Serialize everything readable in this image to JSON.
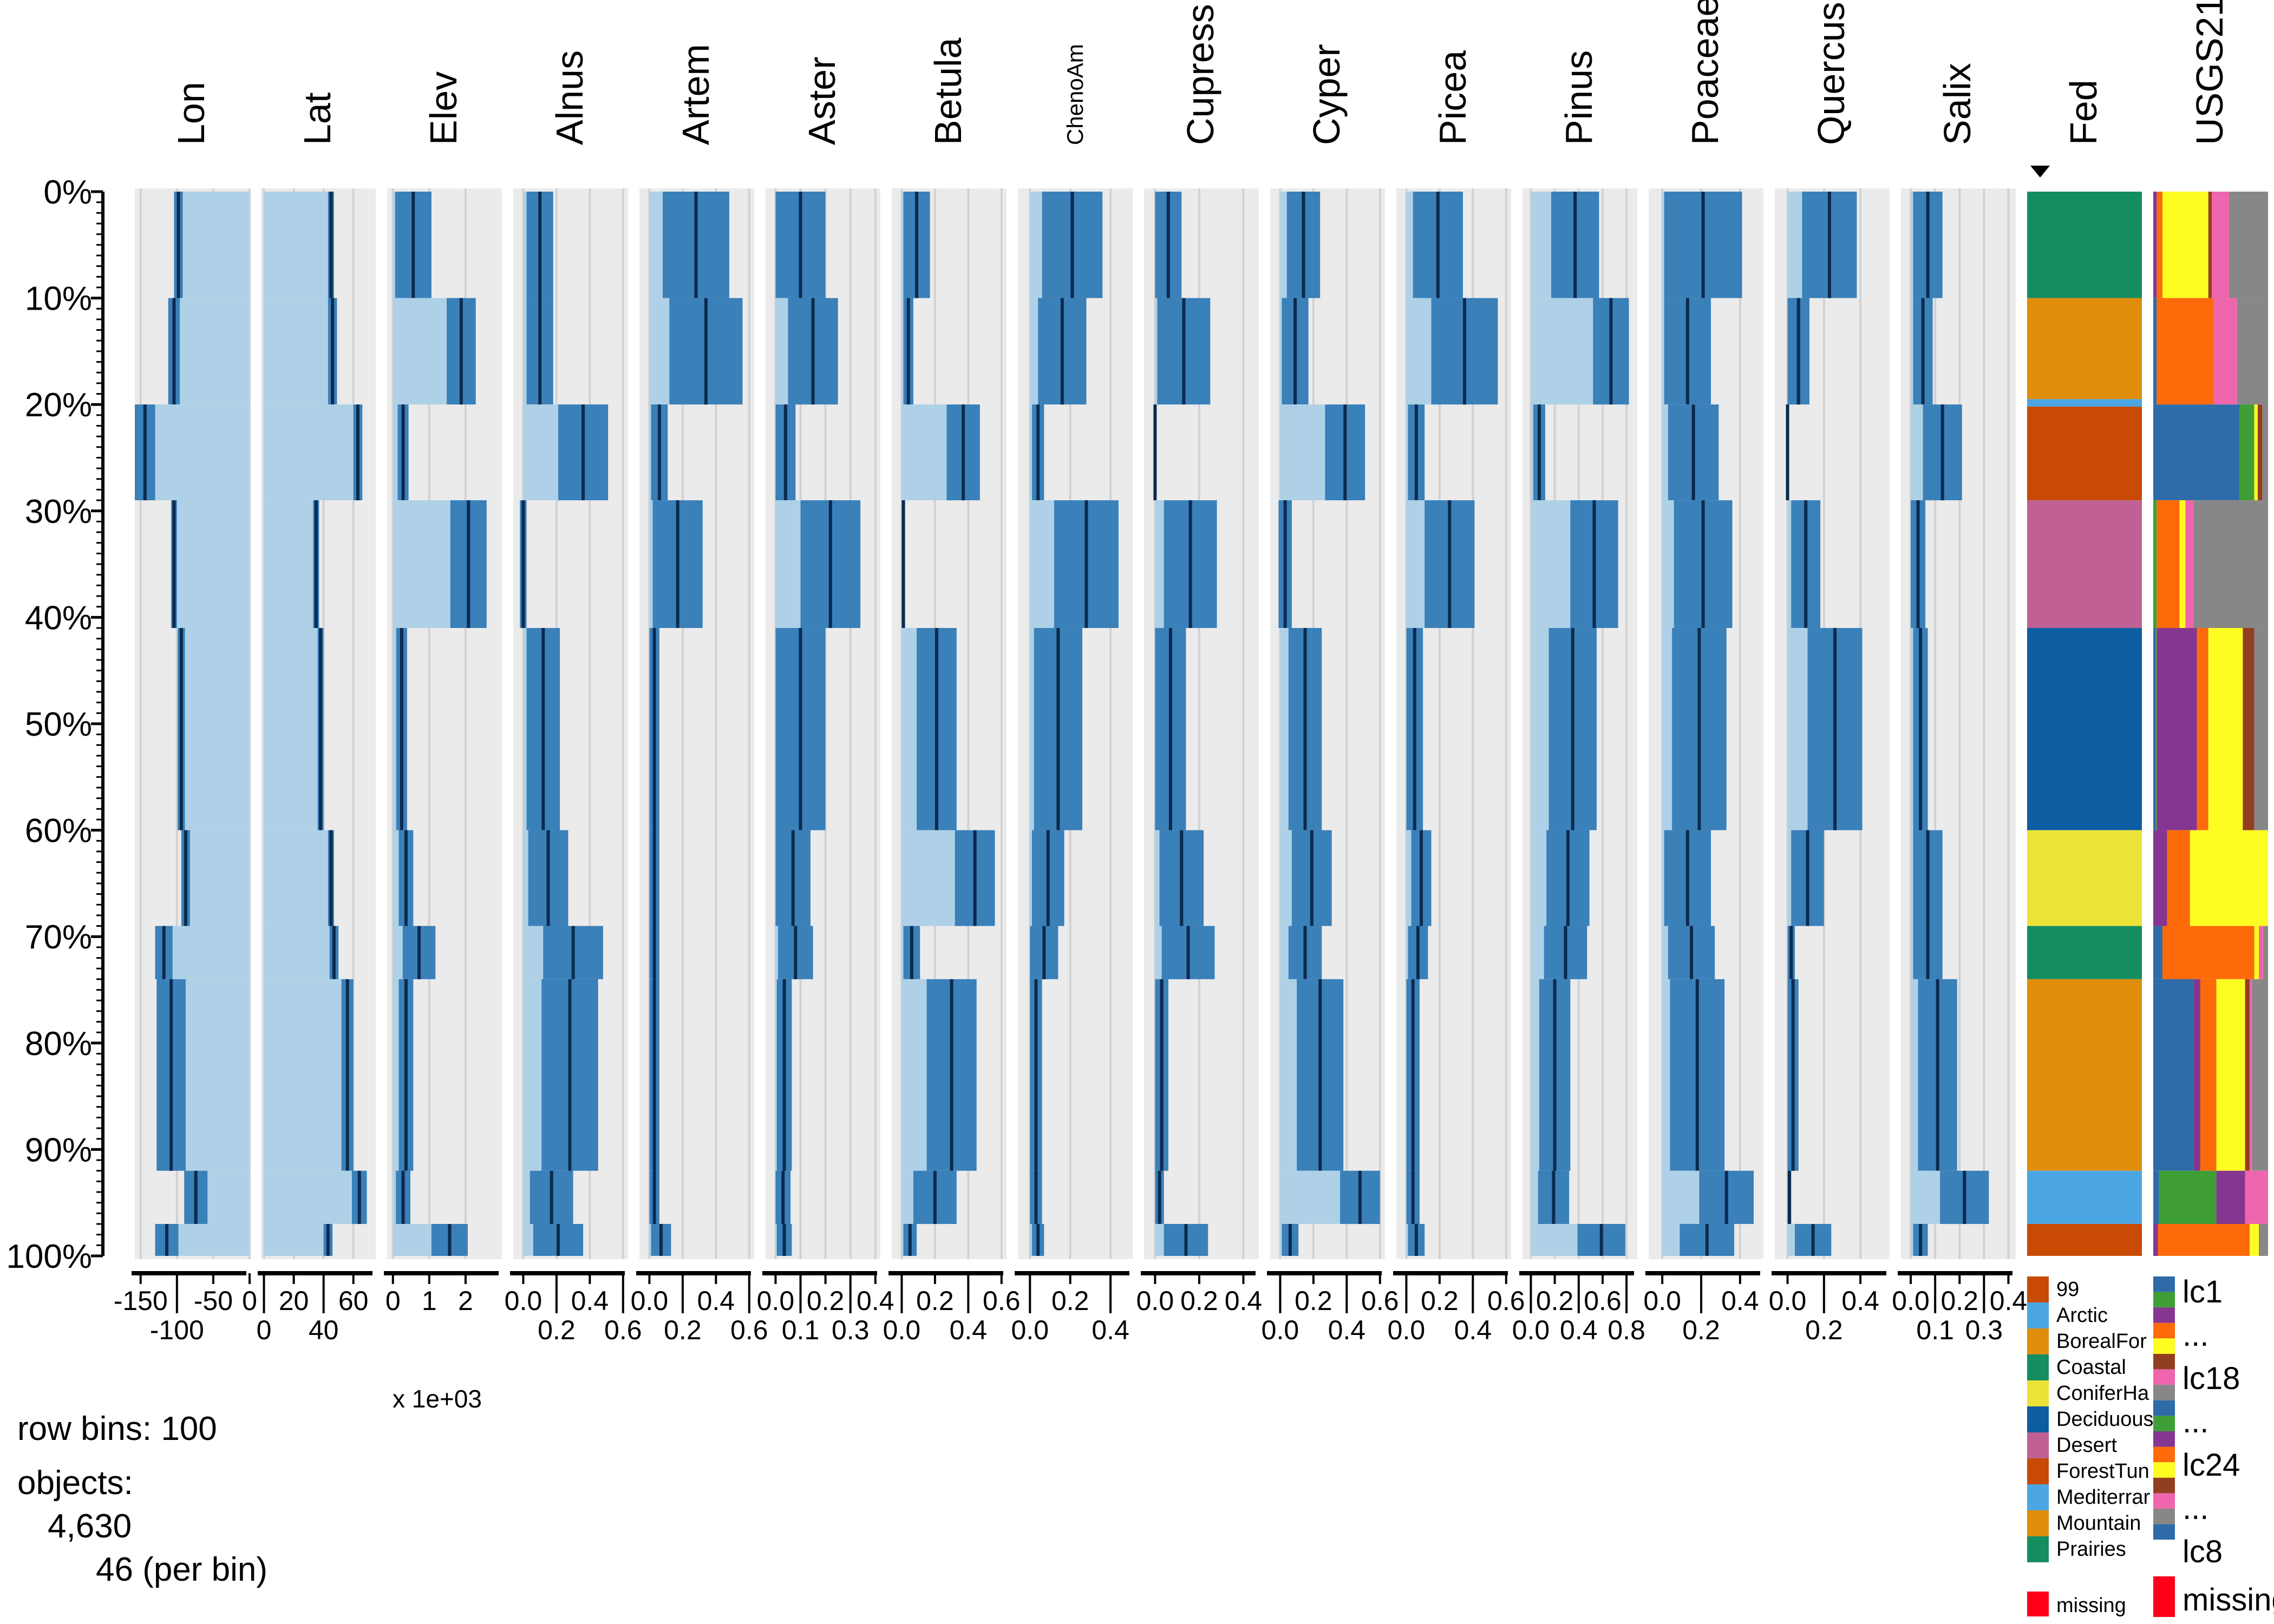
{
  "chart_data": {
    "type": "table",
    "sort_column": "Fed",
    "row_axis": {
      "ticks": [
        "0%",
        "10%",
        "20%",
        "30%",
        "40%",
        "50%",
        "60%",
        "70%",
        "80%",
        "90%",
        "100%"
      ]
    },
    "row_segments": [
      0,
      10,
      20,
      29,
      41,
      60,
      69,
      74,
      92,
      97,
      100
    ],
    "colors": {
      "light_fill": "#AFD1E7",
      "sd_band": "#3A80B9",
      "mean_line": "#0B2A4E",
      "panel_bg": "#EBEBEB"
    },
    "numeric_columns": [
      {
        "name": "Lon",
        "xlim": [
          -158,
          0
        ],
        "tick_values": [
          -150,
          -100,
          -50,
          0
        ],
        "tick_labels": [
          "-150",
          "-100",
          "-50",
          "0"
        ],
        "mean": [
          -98,
          -104,
          -144,
          -104,
          -94,
          -88,
          -118,
          -108,
          -74,
          -114
        ],
        "sd": [
          6,
          8,
          14,
          4,
          5,
          6,
          12,
          20,
          16,
          16
        ]
      },
      {
        "name": "Lat",
        "xlim": [
          -2,
          75
        ],
        "tick_values": [
          0,
          20,
          40,
          60
        ],
        "tick_labels": [
          "0",
          "20",
          "40",
          "60"
        ],
        "mean": [
          45,
          46,
          63,
          35,
          38,
          45,
          47,
          56,
          64,
          43
        ],
        "sd": [
          2,
          3,
          3,
          2,
          2,
          2,
          3,
          4,
          5,
          3
        ]
      },
      {
        "name": "Elev",
        "xlim": [
          -160,
          3000
        ],
        "tick_values": [
          0,
          1000,
          2000
        ],
        "tick_labels": [
          "0",
          "1",
          "2"
        ],
        "scale_note": "x 1e+03",
        "mean": [
          560,
          1880,
          280,
          2080,
          240,
          360,
          720,
          360,
          280,
          1560
        ],
        "sd": [
          500,
          400,
          150,
          500,
          150,
          200,
          450,
          200,
          200,
          500
        ]
      },
      {
        "name": "Alnus",
        "xlim": [
          -0.06,
          0.63
        ],
        "tick_values": [
          0,
          0.2,
          0.4,
          0.6
        ],
        "tick_labels": [
          "0.0",
          "0.2",
          "0.4",
          "0.6"
        ],
        "mean": [
          0.1,
          0.1,
          0.36,
          0.0,
          0.12,
          0.15,
          0.3,
          0.28,
          0.17,
          0.21
        ],
        "sd": [
          0.08,
          0.08,
          0.15,
          0.02,
          0.1,
          0.12,
          0.18,
          0.17,
          0.13,
          0.15
        ]
      },
      {
        "name": "Artem",
        "xlim": [
          -0.06,
          0.63
        ],
        "tick_values": [
          0,
          0.2,
          0.4,
          0.6
        ],
        "tick_labels": [
          "0.0",
          "0.2",
          "0.4",
          "0.6"
        ],
        "mean": [
          0.28,
          0.34,
          0.06,
          0.17,
          0.03,
          0.03,
          0.03,
          0.03,
          0.03,
          0.07
        ],
        "sd": [
          0.2,
          0.22,
          0.05,
          0.15,
          0.03,
          0.03,
          0.03,
          0.03,
          0.03,
          0.06
        ]
      },
      {
        "name": "Aster",
        "xlim": [
          -0.04,
          0.42
        ],
        "tick_values": [
          0,
          0.1,
          0.2,
          0.3,
          0.4
        ],
        "tick_labels": [
          "0.0",
          "0.1",
          "0.2",
          "0.3",
          "0.4"
        ],
        "mean": [
          0.1,
          0.15,
          0.04,
          0.22,
          0.1,
          0.07,
          0.08,
          0.035,
          0.03,
          0.035
        ],
        "sd": [
          0.1,
          0.1,
          0.04,
          0.12,
          0.1,
          0.07,
          0.07,
          0.03,
          0.03,
          0.03
        ]
      },
      {
        "name": "Betula",
        "xlim": [
          -0.06,
          0.63
        ],
        "tick_values": [
          0,
          0.2,
          0.4,
          0.6
        ],
        "tick_labels": [
          "0.0",
          "0.2",
          "0.4",
          "0.6"
        ],
        "mean": [
          0.09,
          0.04,
          0.37,
          0.01,
          0.21,
          0.44,
          0.06,
          0.3,
          0.2,
          0.05
        ],
        "sd": [
          0.08,
          0.03,
          0.1,
          0.01,
          0.12,
          0.12,
          0.05,
          0.15,
          0.13,
          0.04
        ]
      },
      {
        "name": "ChenoAm",
        "xlim": [
          -0.06,
          0.51
        ],
        "tick_values": [
          0,
          0.2,
          0.4
        ],
        "tick_labels": [
          "0.0",
          "0.2",
          "0.4"
        ],
        "mean": [
          0.21,
          0.16,
          0.04,
          0.28,
          0.14,
          0.09,
          0.07,
          0.03,
          0.03,
          0.04
        ],
        "sd": [
          0.15,
          0.12,
          0.03,
          0.16,
          0.12,
          0.08,
          0.07,
          0.03,
          0.03,
          0.03
        ]
      },
      {
        "name": "Cupress",
        "xlim": [
          -0.05,
          0.47
        ],
        "tick_values": [
          0,
          0.2,
          0.4
        ],
        "tick_labels": [
          "0.0",
          "0.2",
          "0.4"
        ],
        "mean": [
          0.06,
          0.13,
          0.0,
          0.16,
          0.07,
          0.12,
          0.15,
          0.03,
          0.02,
          0.14
        ],
        "sd": [
          0.06,
          0.12,
          0.005,
          0.12,
          0.07,
          0.1,
          0.12,
          0.03,
          0.02,
          0.1
        ]
      },
      {
        "name": "Cyper",
        "xlim": [
          -0.06,
          0.63
        ],
        "tick_values": [
          0,
          0.2,
          0.4,
          0.6
        ],
        "tick_labels": [
          "0.0",
          "0.2",
          "0.4",
          "0.6"
        ],
        "mean": [
          0.14,
          0.09,
          0.39,
          0.03,
          0.15,
          0.19,
          0.15,
          0.24,
          0.48,
          0.06
        ],
        "sd": [
          0.1,
          0.08,
          0.12,
          0.04,
          0.1,
          0.12,
          0.1,
          0.14,
          0.12,
          0.05
        ]
      },
      {
        "name": "Picea",
        "xlim": [
          -0.06,
          0.63
        ],
        "tick_values": [
          0,
          0.2,
          0.4,
          0.6
        ],
        "tick_labels": [
          "0.0",
          "0.2",
          "0.4",
          "0.6"
        ],
        "mean": [
          0.19,
          0.35,
          0.06,
          0.26,
          0.05,
          0.09,
          0.07,
          0.04,
          0.04,
          0.06
        ],
        "sd": [
          0.15,
          0.2,
          0.05,
          0.15,
          0.05,
          0.06,
          0.06,
          0.04,
          0.04,
          0.05
        ]
      },
      {
        "name": "Pinus",
        "xlim": [
          -0.07,
          0.89
        ],
        "tick_values": [
          0,
          0.2,
          0.4,
          0.6,
          0.8
        ],
        "tick_labels": [
          "0.0",
          "0.2",
          "0.4",
          "0.6",
          "0.8"
        ],
        "mean": [
          0.37,
          0.67,
          0.07,
          0.53,
          0.35,
          0.31,
          0.29,
          0.2,
          0.19,
          0.59
        ],
        "sd": [
          0.2,
          0.15,
          0.05,
          0.2,
          0.2,
          0.18,
          0.18,
          0.13,
          0.13,
          0.2
        ]
      },
      {
        "name": "Poaceae",
        "xlim": [
          -0.07,
          0.52
        ],
        "tick_values": [
          0,
          0.2,
          0.4
        ],
        "tick_labels": [
          "0.0",
          "0.2",
          "0.4"
        ],
        "mean": [
          0.21,
          0.13,
          0.16,
          0.21,
          0.19,
          0.13,
          0.15,
          0.18,
          0.33,
          0.23
        ],
        "sd": [
          0.2,
          0.12,
          0.13,
          0.15,
          0.14,
          0.12,
          0.12,
          0.14,
          0.14,
          0.14
        ]
      },
      {
        "name": "Quercus",
        "xlim": [
          -0.07,
          0.56
        ],
        "tick_values": [
          0,
          0.2,
          0.4
        ],
        "tick_labels": [
          "0.0",
          "0.2",
          "0.4"
        ],
        "mean": [
          0.23,
          0.06,
          0.0,
          0.1,
          0.26,
          0.11,
          0.02,
          0.03,
          0.01,
          0.14
        ],
        "sd": [
          0.15,
          0.06,
          0.005,
          0.08,
          0.15,
          0.09,
          0.02,
          0.03,
          0.01,
          0.1
        ]
      },
      {
        "name": "Salix",
        "xlim": [
          -0.04,
          0.43
        ],
        "tick_values": [
          0,
          0.1,
          0.2,
          0.3,
          0.4
        ],
        "tick_labels": [
          "0.0",
          "0.1",
          "0.2",
          "0.3",
          "0.4"
        ],
        "mean": [
          0.07,
          0.05,
          0.13,
          0.03,
          0.04,
          0.07,
          0.07,
          0.11,
          0.22,
          0.04
        ],
        "sd": [
          0.06,
          0.04,
          0.08,
          0.03,
          0.03,
          0.06,
          0.06,
          0.08,
          0.1,
          0.03
        ]
      }
    ],
    "fed": {
      "name": "Fed",
      "legend": [
        {
          "label": "99",
          "color": "#C84A05"
        },
        {
          "label": "Arctic",
          "color": "#4CA6E3"
        },
        {
          "label": "BorealFor",
          "color": "#DF8D0A"
        },
        {
          "label": "Coastal",
          "color": "#148E61"
        },
        {
          "label": "ConiferHa",
          "color": "#EDE236"
        },
        {
          "label": "Deciduous",
          "color": "#0C5DA2"
        },
        {
          "label": "Desert",
          "color": "#C06094"
        },
        {
          "label": "ForestTun",
          "color": "#C84A05"
        },
        {
          "label": "Mediterrar",
          "color": "#4CA6E3"
        },
        {
          "label": "Mountain",
          "color": "#DF8D0A"
        },
        {
          "label": "Prairies",
          "color": "#148E61"
        }
      ],
      "missing": {
        "label": "missing",
        "color": "#FF0019"
      },
      "blocks": [
        {
          "category": "Prairies",
          "from": 0,
          "to": 10
        },
        {
          "category": "Mountain",
          "from": 10,
          "to": 19.5
        },
        {
          "category": "Mediterrar",
          "from": 19.5,
          "to": 20.2
        },
        {
          "category": "ForestTun",
          "from": 20.2,
          "to": 29
        },
        {
          "category": "Desert",
          "from": 29,
          "to": 41
        },
        {
          "category": "Deciduous",
          "from": 41,
          "to": 60
        },
        {
          "category": "ConiferHa",
          "from": 60,
          "to": 69
        },
        {
          "category": "Coastal",
          "from": 69,
          "to": 74
        },
        {
          "category": "BorealFor",
          "from": 74,
          "to": 92
        },
        {
          "category": "Arctic",
          "from": 92,
          "to": 97
        },
        {
          "category": "99",
          "from": 97,
          "to": 100
        }
      ]
    },
    "usgs": {
      "name": "USGS21",
      "palette": {
        "blue": "#2F6BA8",
        "green": "#3F9E35",
        "purple": "#843690",
        "orange": "#FD6A0A",
        "yellow": "#FEFD22",
        "brown": "#923F21",
        "pink": "#EF66AE",
        "gray": "#878787"
      },
      "legend_swatches": [
        "blue",
        "green",
        "purple",
        "orange",
        "yellow",
        "brown",
        "pink",
        "gray",
        "blue",
        "green",
        "purple",
        "orange",
        "yellow",
        "brown",
        "pink",
        "gray",
        "blue"
      ],
      "legend_labels": [
        "lc1",
        "...",
        "lc18",
        "...",
        "lc24",
        "...",
        "lc8"
      ],
      "missing": {
        "label": "missing",
        "color": "#FF0019"
      },
      "composition": [
        {
          "purple": 0.03,
          "orange": 0.05,
          "yellow": 0.4,
          "brown": 0.03,
          "pink": 0.15,
          "gray": 0.34
        },
        {
          "blue": 0.03,
          "orange": 0.5,
          "pink": 0.2,
          "gray": 0.27
        },
        {
          "yellow": 0.03,
          "brown": 0.04,
          "blue": 0.75,
          "green": 0.13,
          "gray": 0.05
        },
        {
          "green": 0.03,
          "orange": 0.2,
          "yellow": 0.05,
          "pink": 0.07,
          "gray": 0.65
        },
        {
          "blue": 0.02,
          "green": 0.01,
          "purple": 0.35,
          "orange": 0.1,
          "yellow": 0.3,
          "brown": 0.1,
          "gray": 0.12
        },
        {
          "purple": 0.12,
          "orange": 0.2,
          "yellow": 0.68
        },
        {
          "orange": 0.8,
          "yellow": 0.04,
          "blue": 0.08,
          "pink": 0.04,
          "gray": 0.04
        },
        {
          "purple": 0.06,
          "orange": 0.14,
          "yellow": 0.25,
          "brown": 0.04,
          "blue": 0.35,
          "pink": 0.02,
          "gray": 0.14
        },
        {
          "blue": 0.05,
          "green": 0.5,
          "purple": 0.25,
          "pink": 0.2
        },
        {
          "purple": 0.04,
          "orange": 0.8,
          "yellow": 0.08,
          "gray": 0.08
        }
      ]
    }
  },
  "footer": {
    "row_bins": "row bins: 100",
    "objects_label": "objects:",
    "objects_count": "4,630",
    "per_bin": "46 (per bin)"
  }
}
